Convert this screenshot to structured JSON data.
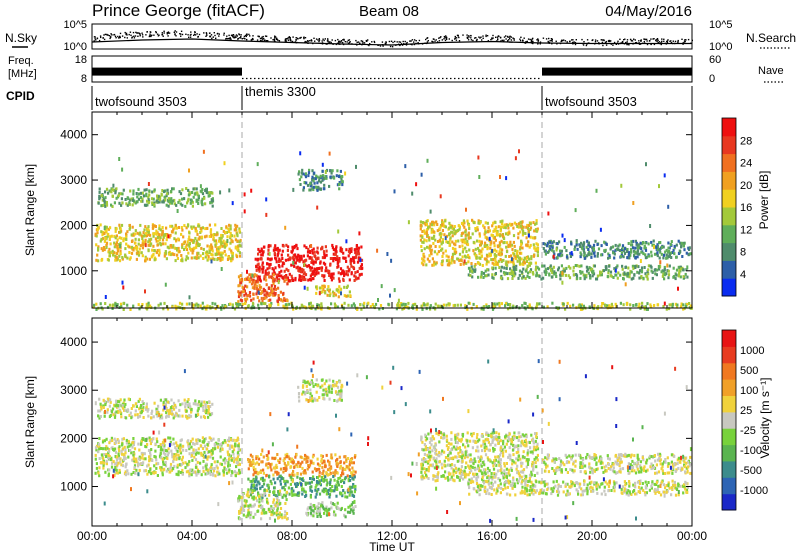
{
  "header": {
    "station": "Prince George (fitACF)",
    "beam": "Beam 08",
    "date": "04/May/2016"
  },
  "chart_data": [
    {
      "type": "line",
      "panel": "noise",
      "left_label": "N.Sky",
      "right_label": "N.Search",
      "y_ticks_left": [
        "10^5",
        "10^0"
      ],
      "y_ticks_right": [
        "10^5",
        "10^0"
      ],
      "series": [
        {
          "name": "N.Sky",
          "style": "dots",
          "x": [
            0,
            1,
            2,
            3,
            4,
            5,
            6,
            7,
            8,
            9,
            10,
            11,
            12,
            13,
            14,
            15,
            16,
            17,
            18,
            19,
            20,
            21,
            22,
            23,
            24
          ],
          "y": [
            2.2,
            2.8,
            3.0,
            3.3,
            3.0,
            2.8,
            2.6,
            2.2,
            2.0,
            1.8,
            1.6,
            1.4,
            1.2,
            1.6,
            2.2,
            2.4,
            2.3,
            2.0,
            1.7,
            1.5,
            1.4,
            1.5,
            1.6,
            1.6,
            1.5
          ]
        },
        {
          "name": "N.Search",
          "style": "dotted",
          "x": [
            0,
            2,
            4,
            6,
            8,
            10,
            12,
            14,
            16,
            18,
            20,
            22,
            24
          ],
          "y": [
            1.4,
            1.8,
            2.0,
            1.6,
            1.3,
            1.0,
            0.8,
            1.3,
            1.5,
            1.2,
            1.1,
            1.1,
            1.1
          ]
        }
      ]
    },
    {
      "type": "line",
      "panel": "frequency",
      "left_label_top": "Freq.",
      "left_label_bottom": "[MHz]",
      "right_label": "Nave",
      "y_ticks_left": [
        "18",
        "8"
      ],
      "y_ticks_right": [
        "60",
        "0"
      ],
      "series": [
        {
          "name": "Freq.",
          "x": [
            0,
            6,
            18,
            24
          ],
          "y": [
            12,
            12,
            12,
            12
          ]
        },
        {
          "name": "Nave",
          "style": "dotted",
          "x": [
            6,
            18
          ],
          "y": [
            8,
            8
          ]
        }
      ]
    },
    {
      "type": "table",
      "panel": "cpid",
      "label": "CPID",
      "segments": [
        {
          "name": "twofsound 3503",
          "start": 0,
          "end": 6
        },
        {
          "name": "themis 3300",
          "start": 6,
          "end": 18
        },
        {
          "name": "twofsound 3503",
          "start": 18,
          "end": 24
        }
      ]
    },
    {
      "type": "heatmap",
      "panel": "power",
      "ylabel": "Slant Range [km]",
      "ylim": [
        180,
        4500
      ],
      "y_ticks": [
        1000,
        2000,
        3000,
        4000
      ],
      "colorbar": {
        "label": "Power [dB]",
        "ticks": [
          "4",
          "8",
          "12",
          "16",
          "20",
          "24",
          "28"
        ],
        "colors": [
          "#0a2cf0",
          "#2d5fa8",
          "#4f8c6c",
          "#5fae5a",
          "#a3c93a",
          "#f0d020",
          "#f0a020",
          "#f07020",
          "#e83820",
          "#ee1010"
        ]
      },
      "dashed_x": [
        6,
        18
      ],
      "blobs": [
        {
          "x": [
            0.1,
            5.9
          ],
          "y": [
            1250,
            2050
          ],
          "level": 5
        },
        {
          "x": [
            0.2,
            4.8
          ],
          "y": [
            2450,
            2850
          ],
          "level": 3
        },
        {
          "x": [
            6.5,
            10.8
          ],
          "y": [
            800,
            1600
          ],
          "level": 9
        },
        {
          "x": [
            5.8,
            7.8
          ],
          "y": [
            350,
            950
          ],
          "level": 7
        },
        {
          "x": [
            8.9,
            10.3
          ],
          "y": [
            450,
            700
          ],
          "level": 5
        },
        {
          "x": [
            8.2,
            10.0
          ],
          "y": [
            2800,
            3250
          ],
          "level": 2
        },
        {
          "x": [
            13.1,
            17.8
          ],
          "y": [
            1150,
            2150
          ],
          "level": 5
        },
        {
          "x": [
            15.0,
            23.8
          ],
          "y": [
            850,
            1150
          ],
          "level": 3
        },
        {
          "x": [
            18.0,
            23.9
          ],
          "y": [
            1300,
            1700
          ],
          "level": 2
        },
        {
          "x": [
            0.0,
            24.0
          ],
          "y": [
            180,
            320
          ],
          "level": 4
        }
      ]
    },
    {
      "type": "heatmap",
      "panel": "velocity",
      "ylabel": "Slant Range [km]",
      "xlabel": "Time UT",
      "ylim": [
        180,
        4500
      ],
      "y_ticks": [
        1000,
        2000,
        3000,
        4000
      ],
      "x_ticks": [
        "00:00",
        "04:00",
        "08:00",
        "12:00",
        "16:00",
        "20:00",
        "00:00"
      ],
      "colorbar": {
        "label": "Velocity [m s⁻¹]",
        "ticks": [
          "1000",
          "500",
          "100",
          "25",
          "-25",
          "-100",
          "-500",
          "-1000"
        ],
        "colors": [
          "#1a28c8",
          "#2d64b4",
          "#3c8c8c",
          "#5ab450",
          "#78d23c",
          "#c8c8c0",
          "#f0d23c",
          "#f0a028",
          "#f07820",
          "#e83c20",
          "#e81414"
        ]
      },
      "dashed_x": [
        6,
        18
      ],
      "blobs": [
        {
          "x": [
            0.1,
            5.9
          ],
          "y": [
            1250,
            2050
          ],
          "level": 5
        },
        {
          "x": [
            0.2,
            4.8
          ],
          "y": [
            2450,
            2850
          ],
          "level": 5
        },
        {
          "x": [
            6.2,
            10.5
          ],
          "y": [
            1250,
            1700
          ],
          "level": 7
        },
        {
          "x": [
            6.2,
            10.5
          ],
          "y": [
            800,
            1250
          ],
          "level": 3
        },
        {
          "x": [
            5.8,
            7.8
          ],
          "y": [
            350,
            950
          ],
          "level": 5
        },
        {
          "x": [
            8.5,
            10.5
          ],
          "y": [
            400,
            700
          ],
          "level": 4
        },
        {
          "x": [
            8.2,
            10.0
          ],
          "y": [
            2800,
            3250
          ],
          "level": 5
        },
        {
          "x": [
            13.1,
            17.8
          ],
          "y": [
            1150,
            2150
          ],
          "level": 5
        },
        {
          "x": [
            15.0,
            23.8
          ],
          "y": [
            850,
            1150
          ],
          "level": 5
        },
        {
          "x": [
            18.0,
            23.9
          ],
          "y": [
            1300,
            1700
          ],
          "level": 5
        }
      ]
    }
  ]
}
